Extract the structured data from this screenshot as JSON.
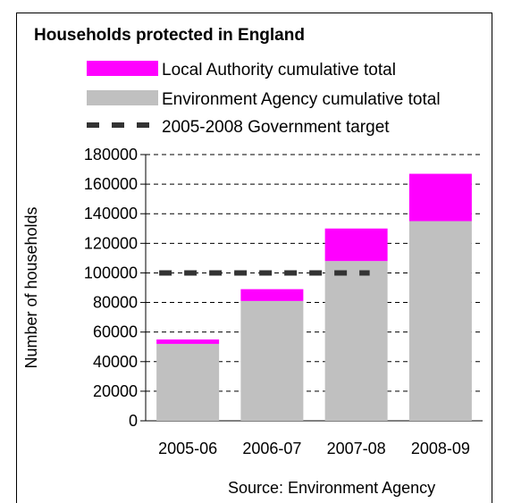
{
  "chart_data": {
    "type": "bar",
    "stacked": true,
    "title": "Households protected in England",
    "ylabel": "Number of households",
    "xlabel": "",
    "categories": [
      "2005-06",
      "2006-07",
      "2007-08",
      "2008-09"
    ],
    "series": [
      {
        "name": "Environment Agency cumulative total",
        "values": [
          52000,
          81000,
          108000,
          135000
        ],
        "color": "#c0c0c0"
      },
      {
        "name": "Local Authority cumulative total",
        "values": [
          3000,
          8000,
          22000,
          32000
        ],
        "color": "#ff00ff"
      }
    ],
    "target": {
      "name": "2005-2008 Government target",
      "value": 100000,
      "categories": [
        "2005-06",
        "2006-07",
        "2007-08"
      ],
      "color": "#333333"
    },
    "ylim": [
      0,
      180000
    ],
    "yticks": [
      0,
      20000,
      40000,
      60000,
      80000,
      100000,
      120000,
      140000,
      160000,
      180000
    ],
    "grid": true,
    "legend_placement": "top",
    "source": "Source: Environment Agency"
  }
}
